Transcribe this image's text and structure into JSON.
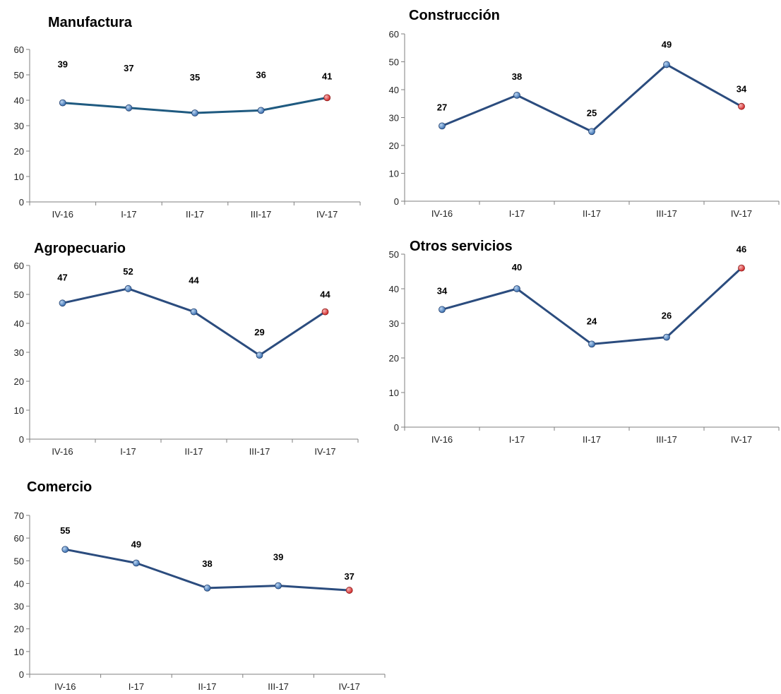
{
  "chart_data": [
    {
      "type": "line",
      "title": "Manufactura",
      "categories": [
        "IV-16",
        "I-17",
        "II-17",
        "III-17",
        "IV-17"
      ],
      "values": [
        39,
        37,
        35,
        36,
        41
      ],
      "ylim": [
        0,
        60
      ],
      "yticks": [
        0,
        10,
        20,
        30,
        40,
        50,
        60
      ],
      "line_color": "#1f5a80",
      "marker_color": "#3a6fb0",
      "last_marker_color": "#d42a2a"
    },
    {
      "type": "line",
      "title": "Construcción",
      "categories": [
        "IV-16",
        "I-17",
        "II-17",
        "III-17",
        "IV-17"
      ],
      "values": [
        27,
        38,
        25,
        49,
        34
      ],
      "ylim": [
        0,
        60
      ],
      "yticks": [
        0,
        10,
        20,
        30,
        40,
        50,
        60
      ],
      "line_color": "#2b4c7e",
      "marker_color": "#3a6fb0",
      "last_marker_color": "#d42a2a"
    },
    {
      "type": "line",
      "title": "Agropecuario",
      "categories": [
        "IV-16",
        "I-17",
        "II-17",
        "III-17",
        "IV-17"
      ],
      "values": [
        47,
        52,
        44,
        29,
        44
      ],
      "ylim": [
        0,
        60
      ],
      "yticks": [
        0,
        10,
        20,
        30,
        40,
        50,
        60
      ],
      "line_color": "#2b4c7e",
      "marker_color": "#3a6fb0",
      "last_marker_color": "#d42a2a"
    },
    {
      "type": "line",
      "title": "Otros servicios",
      "categories": [
        "IV-16",
        "I-17",
        "II-17",
        "III-17",
        "IV-17"
      ],
      "values": [
        34,
        40,
        24,
        26,
        46
      ],
      "ylim": [
        0,
        50
      ],
      "yticks": [
        0,
        10,
        20,
        30,
        40,
        50
      ],
      "line_color": "#2b4c7e",
      "marker_color": "#3a6fb0",
      "last_marker_color": "#d42a2a"
    },
    {
      "type": "line",
      "title": "Comercio",
      "categories": [
        "IV-16",
        "I-17",
        "II-17",
        "III-17",
        "IV-17"
      ],
      "values": [
        55,
        49,
        38,
        39,
        37
      ],
      "ylim": [
        0,
        70
      ],
      "yticks": [
        0,
        10,
        20,
        30,
        40,
        50,
        60,
        70
      ],
      "line_color": "#2b4c7e",
      "marker_color": "#3a6fb0",
      "last_marker_color": "#d42a2a"
    }
  ]
}
